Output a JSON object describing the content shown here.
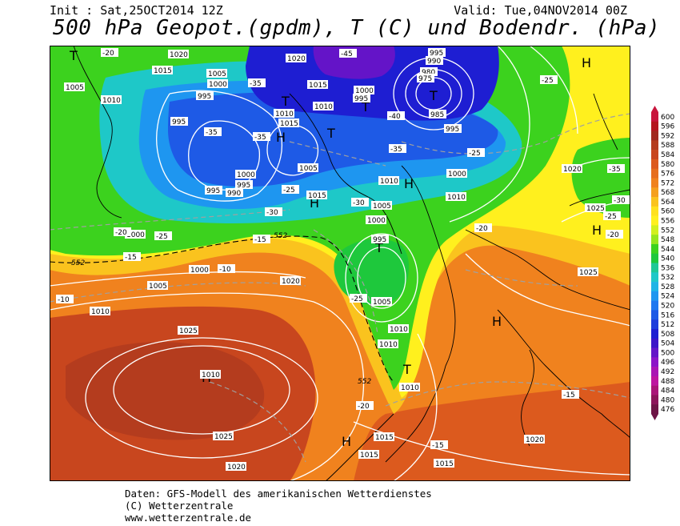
{
  "header": {
    "init": "Init : Sat,25OCT2014 12Z",
    "valid": "Valid: Tue,04NOV2014 00Z",
    "title": "500 hPa Geopot.(gpdm), T (C) und Bodendr. (hPa)"
  },
  "footer": {
    "line1": "Daten: GFS-Modell des amerikanischen Wetterdienstes",
    "line2": "(C) Wetterzentrale",
    "line3": "www.wetterzentrale.de"
  },
  "legend": {
    "values": [
      "600",
      "596",
      "592",
      "588",
      "584",
      "580",
      "576",
      "572",
      "568",
      "564",
      "560",
      "556",
      "552",
      "548",
      "544",
      "540",
      "536",
      "532",
      "528",
      "524",
      "520",
      "516",
      "512",
      "508",
      "504",
      "500",
      "496",
      "492",
      "488",
      "484",
      "480",
      "476"
    ],
    "colors": [
      "#c8143c",
      "#b4141e",
      "#a0281e",
      "#b43c1e",
      "#c8461e",
      "#dc5a1e",
      "#e66e1e",
      "#f0821e",
      "#f5a01e",
      "#fac31e",
      "#ffe11e",
      "#fff01e",
      "#d2f01e",
      "#96e61e",
      "#3cd21e",
      "#1ec83c",
      "#1ec896",
      "#1ec8c8",
      "#1eb4e6",
      "#1e96f0",
      "#1e78f0",
      "#1e5ae6",
      "#1e3cdc",
      "#1e1ed2",
      "#3c14c8",
      "#6414c8",
      "#8c14c8",
      "#aa14b4",
      "#be14a0",
      "#aa1478",
      "#8c145a",
      "#6e1446"
    ]
  },
  "map": {
    "high_symbol": "H",
    "low_symbol": "T",
    "pressure_labels": [
      "1020",
      "1015",
      "1005",
      "1000",
      "995",
      "990",
      "985",
      "980",
      "975",
      "1010",
      "1025"
    ],
    "temperature_labels": [
      "-20",
      "-25",
      "-30",
      "-35",
      "-40",
      "-45",
      "-15",
      "-10"
    ],
    "geopotential_labels": [
      "552"
    ]
  }
}
